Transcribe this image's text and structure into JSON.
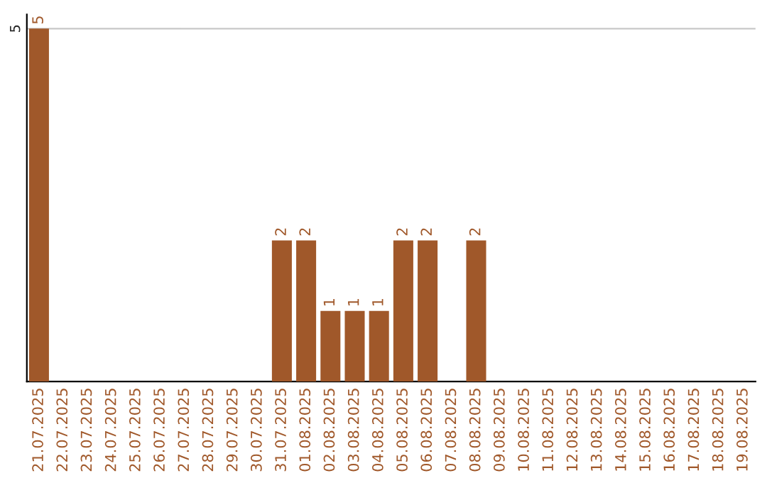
{
  "chart_data": {
    "type": "bar",
    "categories": [
      "21.07.2025",
      "22.07.2025",
      "23.07.2025",
      "24.07.2025",
      "25.07.2025",
      "26.07.2025",
      "27.07.2025",
      "28.07.2025",
      "29.07.2025",
      "30.07.2025",
      "31.07.2025",
      "01.08.2025",
      "02.08.2025",
      "03.08.2025",
      "04.08.2025",
      "05.08.2025",
      "06.08.2025",
      "07.08.2025",
      "08.08.2025",
      "09.08.2025",
      "10.08.2025",
      "11.08.2025",
      "12.08.2025",
      "13.08.2025",
      "14.08.2025",
      "15.08.2025",
      "16.08.2025",
      "17.08.2025",
      "18.08.2025",
      "19.08.2025"
    ],
    "values": [
      5,
      0,
      0,
      0,
      0,
      0,
      0,
      0,
      0,
      0,
      2,
      2,
      1,
      1,
      1,
      2,
      2,
      0,
      2,
      0,
      0,
      0,
      0,
      0,
      0,
      0,
      0,
      0,
      0,
      0
    ],
    "value_labels": [
      "5",
      null,
      null,
      null,
      null,
      null,
      null,
      null,
      null,
      null,
      "2",
      "2",
      "1",
      "1",
      "1",
      "2",
      "2",
      null,
      "2",
      null,
      null,
      null,
      null,
      null,
      null,
      null,
      null,
      null,
      null,
      null
    ],
    "color": "#a0582a",
    "ylim": [
      0,
      5.2
    ],
    "yticks": [
      5
    ],
    "grid": "y",
    "legend": false
  }
}
